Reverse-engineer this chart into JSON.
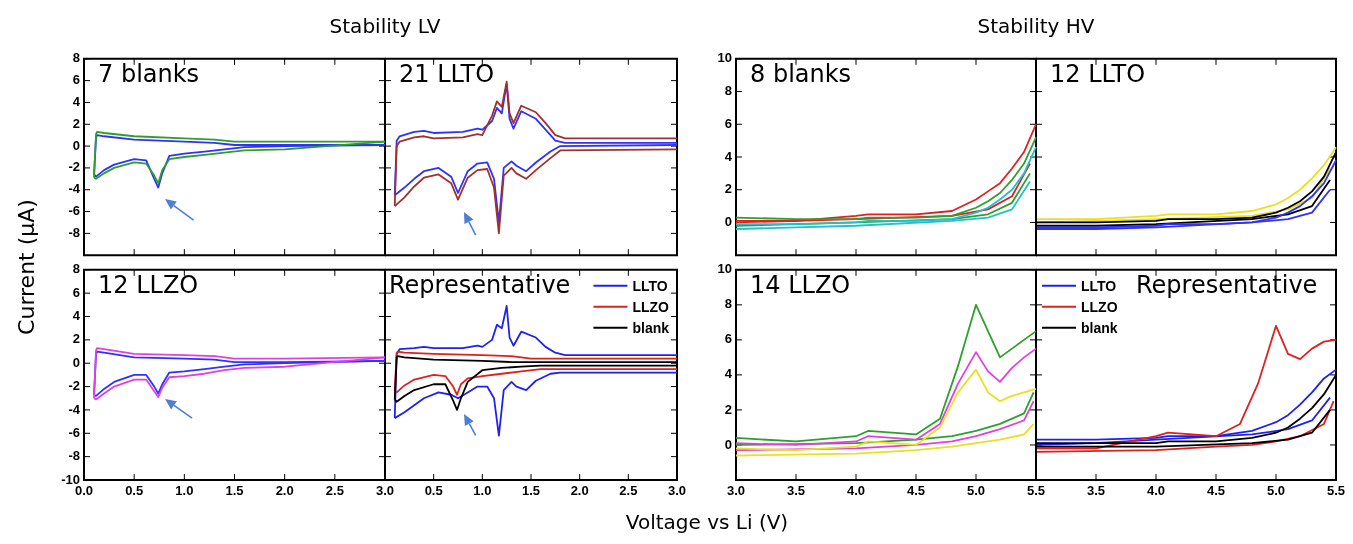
{
  "chart_data": [
    {
      "type": "line",
      "title": "Stability LV",
      "ylabel": "Current (μA)",
      "annotations": [
        "7 blanks"
      ],
      "marker": "none",
      "tick_labels": "y",
      "grid": false,
      "xlim": [
        0,
        3
      ],
      "ylim": [
        -10,
        8
      ],
      "xticks": [
        {
          "value": 0.5,
          "label": null
        },
        {
          "value": 1,
          "label": null
        },
        {
          "value": 1.5,
          "label": null
        },
        {
          "value": 2,
          "label": null
        },
        {
          "value": 2.5,
          "label": null
        }
      ],
      "yticks": [
        -8,
        -6,
        -4,
        -2,
        0,
        2,
        4,
        6,
        8
      ],
      "series": [
        {
          "color": "#3030ff",
          "x": [
            0.1,
            0.12,
            0.2,
            0.3,
            0.5,
            0.62,
            0.7,
            0.74,
            0.78,
            0.85,
            1.0,
            1.2,
            1.4,
            1.6,
            2.0,
            3.0
          ],
          "values": [
            -2.6,
            -2.8,
            -2.2,
            -1.7,
            -1.2,
            -1.3,
            -3.0,
            -3.8,
            -2.5,
            -0.9,
            -0.7,
            -0.5,
            -0.3,
            -0.1,
            0,
            0.1
          ]
        },
        {
          "color": "#3030ff",
          "x": [
            0.1,
            0.12,
            0.13,
            0.2,
            0.5,
            1.0,
            1.3,
            1.5,
            2.0,
            3.0
          ],
          "values": [
            -2.6,
            0.8,
            1.0,
            0.9,
            0.6,
            0.4,
            0.3,
            0.1,
            0.1,
            0.1
          ]
        },
        {
          "color": "#2ca02c",
          "x": [
            0.1,
            0.12,
            0.2,
            0.3,
            0.5,
            0.62,
            0.7,
            0.74,
            0.78,
            0.85,
            1.0,
            1.2,
            1.4,
            1.6,
            2.0,
            3.0
          ],
          "values": [
            -2.9,
            -3.0,
            -2.5,
            -2.0,
            -1.5,
            -1.6,
            -2.7,
            -3.4,
            -2.2,
            -1.2,
            -1.0,
            -0.8,
            -0.6,
            -0.4,
            -0.3,
            0.4
          ]
        },
        {
          "color": "#2ca02c",
          "x": [
            0.1,
            0.12,
            0.13,
            0.2,
            0.5,
            1.0,
            1.3,
            1.5,
            2.0,
            3.0
          ],
          "values": [
            -2.9,
            1.1,
            1.3,
            1.2,
            0.9,
            0.7,
            0.6,
            0.4,
            0.4,
            0.4
          ]
        }
      ]
    },
    {
      "type": "line",
      "annotations": [
        "21 LLTO"
      ],
      "marker": "none",
      "tick_labels": false,
      "grid": false,
      "xlim": [
        0,
        3
      ],
      "ylim": [
        -10,
        8
      ],
      "xticks": [
        {
          "value": 0.5,
          "label": null
        },
        {
          "value": 1,
          "label": null
        },
        {
          "value": 1.5,
          "label": null
        },
        {
          "value": 2,
          "label": null
        },
        {
          "value": 2.5,
          "label": null
        }
      ],
      "yticks": [
        {
          "value": -8,
          "label": null
        },
        {
          "value": -6,
          "label": null
        },
        {
          "value": -4,
          "label": null
        },
        {
          "value": -2,
          "label": null
        },
        {
          "value": 0,
          "label": null
        },
        {
          "value": 2,
          "label": null
        },
        {
          "value": 4,
          "label": null
        },
        {
          "value": 6,
          "label": null
        }
      ],
      "series": [
        {
          "color": "#3030ff",
          "x": [
            0.1,
            0.2,
            0.3,
            0.4,
            0.55,
            0.68,
            0.75,
            0.85,
            0.95,
            1.05,
            1.12,
            1.17,
            1.22,
            1.3,
            1.35,
            1.45,
            1.55,
            1.7,
            1.8,
            3.0
          ],
          "values": [
            -4.5,
            -3.8,
            -3.0,
            -2.3,
            -2.0,
            -2.8,
            -4.3,
            -2.3,
            -1.6,
            -1.5,
            -3.0,
            -7.0,
            -2.0,
            -1.4,
            -1.8,
            -2.3,
            -1.5,
            -0.5,
            0,
            0.1
          ]
        },
        {
          "color": "#3030ff",
          "x": [
            0.1,
            0.12,
            0.15,
            0.3,
            0.4,
            0.5,
            0.8,
            0.95,
            1.0,
            1.1,
            1.15,
            1.2,
            1.25,
            1.28,
            1.32,
            1.4,
            1.55,
            1.65,
            1.75,
            1.85,
            3.0
          ],
          "values": [
            -4.5,
            0.5,
            0.9,
            1.3,
            1.4,
            1.2,
            1.3,
            1.6,
            1.5,
            2.3,
            3.5,
            3.0,
            5.7,
            2.5,
            1.6,
            3.2,
            2.5,
            1.5,
            0.5,
            0.3,
            0.3
          ]
        },
        {
          "color": "#a0322d",
          "x": [
            0.1,
            0.2,
            0.3,
            0.4,
            0.55,
            0.68,
            0.75,
            0.85,
            0.95,
            1.05,
            1.12,
            1.17,
            1.22,
            1.3,
            1.35,
            1.45,
            1.55,
            1.7,
            1.8,
            3.0
          ],
          "values": [
            -5.5,
            -4.7,
            -3.7,
            -2.9,
            -2.6,
            -3.4,
            -4.9,
            -2.9,
            -2.2,
            -2.1,
            -3.8,
            -8.0,
            -2.7,
            -2.0,
            -2.5,
            -3.0,
            -2.2,
            -1.1,
            -0.4,
            -0.3
          ]
        },
        {
          "color": "#a0322d",
          "x": [
            0.1,
            0.12,
            0.15,
            0.3,
            0.4,
            0.5,
            0.8,
            0.95,
            1.0,
            1.1,
            1.15,
            1.2,
            1.25,
            1.28,
            1.32,
            1.4,
            1.55,
            1.65,
            1.75,
            1.85,
            3.0
          ],
          "values": [
            -5.5,
            0.0,
            0.4,
            0.8,
            0.9,
            0.7,
            0.8,
            1.1,
            1.0,
            2.8,
            4.1,
            3.6,
            5.9,
            3.0,
            2.1,
            3.7,
            3.1,
            2.1,
            1.0,
            0.7,
            0.7
          ]
        }
      ]
    },
    {
      "type": "line",
      "annotations": [
        "12 LLZO"
      ],
      "marker": "none",
      "grid": false,
      "xlim": [
        0,
        3
      ],
      "ylim": [
        -10,
        8
      ],
      "xticks": [
        {
          "value": 0,
          "label": "0.0"
        },
        {
          "value": 0.5,
          "label": "0.5"
        },
        {
          "value": 1,
          "label": "1.0"
        },
        {
          "value": 1.5,
          "label": "1.5"
        },
        {
          "value": 2,
          "label": "2.0"
        },
        {
          "value": 2.5,
          "label": "2.5"
        },
        {
          "value": 3,
          "label": "3.0"
        }
      ],
      "yticks": [
        -10,
        -8,
        -6,
        -4,
        -2,
        0,
        2,
        4,
        6,
        8
      ],
      "series": [
        {
          "color": "#3030ff",
          "x": [
            0.1,
            0.12,
            0.2,
            0.3,
            0.5,
            0.62,
            0.7,
            0.74,
            0.78,
            0.85,
            1.0,
            1.2,
            1.4,
            1.6,
            2.0,
            3.0
          ],
          "values": [
            -2.7,
            -2.8,
            -2.2,
            -1.6,
            -1.0,
            -1.0,
            -2.0,
            -2.6,
            -1.8,
            -0.8,
            -0.7,
            -0.5,
            -0.3,
            -0.1,
            0,
            0.2
          ]
        },
        {
          "color": "#3030ff",
          "x": [
            0.1,
            0.12,
            0.13,
            0.2,
            0.5,
            1.0,
            1.3,
            1.5,
            2.0,
            3.0
          ],
          "values": [
            -2.7,
            0.8,
            1.0,
            0.9,
            0.5,
            0.4,
            0.3,
            0.1,
            0.1,
            0.2
          ]
        },
        {
          "color": "#e040e0",
          "x": [
            0.1,
            0.12,
            0.2,
            0.3,
            0.5,
            0.62,
            0.7,
            0.74,
            0.78,
            0.85,
            1.0,
            1.2,
            1.4,
            1.6,
            2.0,
            3.0
          ],
          "values": [
            -3.0,
            -3.1,
            -2.6,
            -2.0,
            -1.4,
            -1.4,
            -2.4,
            -2.9,
            -2.1,
            -1.2,
            -1.1,
            -0.9,
            -0.6,
            -0.4,
            -0.3,
            0.5
          ]
        },
        {
          "color": "#e040e0",
          "x": [
            0.1,
            0.12,
            0.13,
            0.2,
            0.5,
            1.0,
            1.3,
            1.5,
            2.0,
            3.0
          ],
          "values": [
            -3.0,
            1.1,
            1.3,
            1.2,
            0.8,
            0.7,
            0.6,
            0.4,
            0.4,
            0.5
          ]
        }
      ]
    },
    {
      "type": "line",
      "annotations": [
        "Representative"
      ],
      "xlabel": "Voltage vs Li (V)",
      "marker": "none",
      "tick_labels": "x",
      "grid": false,
      "legend": "top right",
      "xlim": [
        0,
        3
      ],
      "ylim": [
        -10,
        8
      ],
      "xticks": [
        {
          "value": 0.5,
          "label": "0.5"
        },
        {
          "value": 1,
          "label": "1.0"
        },
        {
          "value": 1.5,
          "label": "1.5"
        },
        {
          "value": 2,
          "label": "2.0"
        },
        {
          "value": 2.5,
          "label": "2.5"
        },
        {
          "value": 3,
          "label": "3.0"
        }
      ],
      "yticks": [
        {
          "value": -8,
          "label": null
        },
        {
          "value": -6,
          "label": null
        },
        {
          "value": -4,
          "label": null
        },
        {
          "value": -2,
          "label": null
        },
        {
          "value": 0,
          "label": null
        },
        {
          "value": 2,
          "label": null
        },
        {
          "value": 4,
          "label": null
        },
        {
          "value": 6,
          "label": null
        }
      ],
      "series": [
        {
          "name": "LLTO",
          "color": "#2020f0",
          "x": [
            0.1,
            0.2,
            0.3,
            0.4,
            0.55,
            0.68,
            0.75,
            0.85,
            0.95,
            1.05,
            1.12,
            1.17,
            1.22,
            1.3,
            1.35,
            1.45,
            1.55,
            1.7,
            1.8,
            3.0
          ],
          "values": [
            -4.7,
            -4.2,
            -3.6,
            -3.0,
            -2.5,
            -2.7,
            -3.0,
            -2.5,
            -2.0,
            -2.0,
            -3.0,
            -6.2,
            -2.3,
            -1.6,
            -2.0,
            -2.3,
            -1.5,
            -0.9,
            -0.8,
            -0.8
          ]
        },
        {
          "color": "#2020f0",
          "x": [
            0.1,
            0.12,
            0.15,
            0.3,
            0.4,
            0.5,
            0.8,
            0.95,
            1.0,
            1.1,
            1.15,
            1.2,
            1.25,
            1.28,
            1.32,
            1.4,
            1.55,
            1.65,
            1.75,
            1.85,
            3.0
          ],
          "values": [
            -4.7,
            0.8,
            1.2,
            1.3,
            1.4,
            1.3,
            1.3,
            1.5,
            1.4,
            2.0,
            3.3,
            3.0,
            4.9,
            2.2,
            1.5,
            2.7,
            2.2,
            1.4,
            0.9,
            0.7,
            0.7
          ]
        },
        {
          "name": "LLZO",
          "color": "#e02020",
          "x": [
            0.1,
            0.12,
            0.2,
            0.3,
            0.5,
            0.62,
            0.7,
            0.74,
            0.78,
            0.85,
            1.0,
            1.2,
            1.4,
            1.6,
            2.0,
            3.0
          ],
          "values": [
            -2.4,
            -2.5,
            -1.9,
            -1.4,
            -1.0,
            -1.1,
            -2.0,
            -2.7,
            -1.8,
            -1.3,
            -1.1,
            -0.9,
            -0.7,
            -0.5,
            -0.5,
            -0.5
          ]
        },
        {
          "color": "#e02020",
          "x": [
            0.1,
            0.12,
            0.13,
            0.2,
            0.5,
            1.0,
            1.3,
            1.5,
            2.0,
            3.0
          ],
          "values": [
            -2.4,
            0.9,
            1.0,
            0.9,
            0.8,
            0.7,
            0.6,
            0.4,
            0.4,
            0.4
          ]
        },
        {
          "name": "blank",
          "color": "#000000",
          "x": [
            0.1,
            0.12,
            0.2,
            0.3,
            0.5,
            0.62,
            0.7,
            0.74,
            0.78,
            0.85,
            1.0,
            1.2,
            1.4,
            1.6,
            2.0,
            3.0
          ],
          "values": [
            -3.1,
            -3.3,
            -2.8,
            -2.3,
            -1.8,
            -1.8,
            -3.2,
            -4.0,
            -3.0,
            -1.6,
            -0.6,
            -0.4,
            -0.3,
            -0.2,
            -0.2,
            -0.2
          ]
        },
        {
          "color": "#000000",
          "x": [
            0.1,
            0.12,
            0.13,
            0.2,
            0.5,
            1.0,
            1.3,
            1.5,
            2.0,
            3.0
          ],
          "values": [
            -3.1,
            0.5,
            0.6,
            0.5,
            0.3,
            0.2,
            0.1,
            0.1,
            0.1,
            0.1
          ]
        }
      ]
    },
    {
      "type": "line",
      "title": "Stability HV",
      "annotations": [
        "8 blanks"
      ],
      "marker": "none",
      "tick_labels": "y",
      "grid": false,
      "xlim": [
        3,
        5.5
      ],
      "ylim": [
        -2,
        10
      ],
      "xticks": [
        {
          "value": 3.5,
          "label": null
        },
        {
          "value": 4,
          "label": null
        },
        {
          "value": 4.5,
          "label": null
        },
        {
          "value": 5,
          "label": null
        }
      ],
      "yticks": [
        0,
        2,
        4,
        6,
        8,
        10
      ],
      "series": [
        {
          "color": "#e02020",
          "x": [
            3.0,
            3.5,
            4.0,
            4.1,
            4.5,
            4.8,
            5.0,
            5.1,
            5.2,
            5.3,
            5.4,
            5.5
          ],
          "values": [
            0.1,
            0.1,
            0.4,
            0.5,
            0.5,
            0.7,
            1.4,
            1.9,
            2.4,
            3.3,
            4.3,
            6.0
          ]
        },
        {
          "color": "#e02020",
          "x": [
            3.0,
            3.5,
            4.0,
            4.8,
            5.1,
            5.3,
            5.45
          ],
          "values": [
            0.0,
            0.1,
            0.2,
            0.4,
            0.8,
            1.6,
            3.6
          ]
        },
        {
          "color": "#2ca02c",
          "x": [
            3.0,
            3.5,
            4.0,
            4.1,
            4.5,
            4.8,
            5.0,
            5.1,
            5.2,
            5.3,
            5.4,
            5.5
          ],
          "values": [
            0.3,
            0.2,
            0.2,
            0.3,
            0.3,
            0.4,
            0.9,
            1.3,
            1.8,
            2.6,
            3.6,
            5.2
          ]
        },
        {
          "color": "#2ca02c",
          "x": [
            3.0,
            3.5,
            4.0,
            4.8,
            5.1,
            5.3,
            5.45
          ],
          "values": [
            -0.2,
            -0.1,
            0.0,
            0.2,
            0.5,
            1.2,
            3.0
          ]
        },
        {
          "color": "#20c0d0",
          "x": [
            3.0,
            3.5,
            4.0,
            4.1,
            4.5,
            4.8,
            5.0,
            5.1,
            5.2,
            5.3,
            5.4,
            5.5
          ],
          "values": [
            -0.1,
            -0.1,
            0.0,
            0.1,
            0.1,
            0.2,
            0.6,
            0.9,
            1.4,
            2.0,
            3.0,
            4.6
          ]
        },
        {
          "color": "#20c0d0",
          "x": [
            3.0,
            3.5,
            4.0,
            4.8,
            5.1,
            5.3,
            5.45
          ],
          "values": [
            -0.4,
            -0.3,
            -0.2,
            0.1,
            0.3,
            0.8,
            2.5
          ]
        }
      ]
    },
    {
      "type": "line",
      "annotations": [
        "12 LLTO"
      ],
      "marker": "none",
      "tick_labels": false,
      "grid": false,
      "xlim": [
        3,
        5.5
      ],
      "ylim": [
        -2,
        10
      ],
      "xticks": [
        {
          "value": 3.5,
          "label": null
        },
        {
          "value": 4,
          "label": null
        },
        {
          "value": 4.5,
          "label": null
        },
        {
          "value": 5,
          "label": null
        }
      ],
      "yticks": [
        {
          "value": 0,
          "label": null
        },
        {
          "value": 2,
          "label": null
        },
        {
          "value": 4,
          "label": null
        },
        {
          "value": 6,
          "label": null
        },
        {
          "value": 8,
          "label": null
        }
      ],
      "series": [
        {
          "color": "#e8e020",
          "x": [
            3.0,
            3.5,
            4.0,
            4.1,
            4.5,
            4.8,
            5.0,
            5.1,
            5.2,
            5.3,
            5.4,
            5.5
          ],
          "values": [
            0.2,
            0.2,
            0.4,
            0.5,
            0.5,
            0.7,
            1.1,
            1.5,
            2.0,
            2.7,
            3.5,
            4.6
          ]
        },
        {
          "color": "#e8e020",
          "x": [
            3.0,
            3.5,
            4.0,
            4.8,
            5.1,
            5.3,
            5.45
          ],
          "values": [
            0.0,
            0.1,
            0.2,
            0.4,
            0.8,
            1.5,
            3.3
          ]
        },
        {
          "color": "#000000",
          "x": [
            3.0,
            3.5,
            4.0,
            4.1,
            4.5,
            4.8,
            5.0,
            5.1,
            5.2,
            5.3,
            5.4,
            5.5
          ],
          "values": [
            0.0,
            0.0,
            0.1,
            0.2,
            0.2,
            0.3,
            0.6,
            0.9,
            1.3,
            1.9,
            2.8,
            4.3
          ]
        },
        {
          "color": "#000000",
          "x": [
            3.0,
            3.5,
            4.0,
            4.8,
            5.1,
            5.3,
            5.45
          ],
          "values": [
            -0.2,
            -0.2,
            -0.1,
            0.2,
            0.5,
            1.0,
            2.6
          ]
        },
        {
          "color": "#3030ff",
          "x": [
            3.0,
            3.5,
            4.0,
            4.1,
            4.5,
            4.8,
            5.0,
            5.1,
            5.2,
            5.3,
            5.4,
            5.5
          ],
          "values": [
            -0.3,
            -0.3,
            -0.2,
            -0.1,
            -0.1,
            0.0,
            0.3,
            0.6,
            1.0,
            1.6,
            2.4,
            3.8
          ]
        },
        {
          "color": "#3030ff",
          "x": [
            3.0,
            3.5,
            4.0,
            4.8,
            5.1,
            5.3,
            5.45
          ],
          "values": [
            -0.4,
            -0.4,
            -0.3,
            0.0,
            0.2,
            0.6,
            2.0
          ]
        }
      ]
    },
    {
      "type": "line",
      "annotations": [
        "14 LLZO"
      ],
      "marker": "none",
      "grid": false,
      "xlim": [
        3,
        5.5
      ],
      "ylim": [
        -2,
        10
      ],
      "xticks": [
        {
          "value": 3,
          "label": "3.0"
        },
        {
          "value": 3.5,
          "label": "3.5"
        },
        {
          "value": 4,
          "label": "4.0"
        },
        {
          "value": 4.5,
          "label": "4.5"
        },
        {
          "value": 5,
          "label": "5.0"
        },
        {
          "value": 5.5,
          "label": "5.5"
        }
      ],
      "yticks": [
        0,
        2,
        4,
        6,
        8,
        10
      ],
      "series": [
        {
          "color": "#2ca02c",
          "x": [
            3.0,
            3.5,
            4.0,
            4.1,
            4.5,
            4.7,
            4.85,
            5.0,
            5.1,
            5.2,
            5.3,
            5.4,
            5.5
          ],
          "values": [
            0.4,
            0.2,
            0.5,
            0.8,
            0.6,
            1.5,
            4.5,
            8.0,
            6.5,
            5.0,
            5.5,
            6.0,
            6.5
          ]
        },
        {
          "color": "#2ca02c",
          "x": [
            3.0,
            4.0,
            4.5,
            4.8,
            5.0,
            5.2,
            5.4,
            5.48
          ],
          "values": [
            0.0,
            0.1,
            0.3,
            0.5,
            0.8,
            1.2,
            1.8,
            3.0
          ]
        },
        {
          "color": "#e040e0",
          "x": [
            3.0,
            3.5,
            4.0,
            4.1,
            4.5,
            4.7,
            4.85,
            5.0,
            5.1,
            5.2,
            5.3,
            5.4,
            5.5
          ],
          "values": [
            0.1,
            0.0,
            0.2,
            0.5,
            0.3,
            1.2,
            3.5,
            5.3,
            4.2,
            3.6,
            4.4,
            5.0,
            5.5
          ]
        },
        {
          "color": "#e040e0",
          "x": [
            3.0,
            4.0,
            4.5,
            4.8,
            5.0,
            5.2,
            5.4,
            5.48
          ],
          "values": [
            -0.3,
            -0.2,
            0.0,
            0.2,
            0.5,
            0.9,
            1.4,
            2.5
          ]
        },
        {
          "color": "#e8e020",
          "x": [
            3.0,
            3.5,
            4.0,
            4.1,
            4.5,
            4.7,
            4.85,
            5.0,
            5.1,
            5.2,
            5.3,
            5.4,
            5.5
          ],
          "values": [
            -0.2,
            -0.3,
            -0.1,
            0.2,
            0.0,
            1.0,
            3.0,
            4.3,
            3.0,
            2.5,
            2.8,
            3.0,
            3.2
          ]
        },
        {
          "color": "#e8e020",
          "x": [
            3.0,
            4.0,
            4.5,
            4.8,
            5.0,
            5.2,
            5.4,
            5.48
          ],
          "values": [
            -0.6,
            -0.5,
            -0.3,
            -0.1,
            0.1,
            0.3,
            0.6,
            1.2
          ]
        }
      ]
    },
    {
      "type": "line",
      "annotations": [
        "Representative"
      ],
      "marker": "none",
      "tick_labels": "x",
      "grid": false,
      "legend": "top left",
      "xlim": [
        3,
        5.5
      ],
      "ylim": [
        -2,
        10
      ],
      "xticks": [
        {
          "value": 3.5,
          "label": "3.5"
        },
        {
          "value": 4,
          "label": "4.0"
        },
        {
          "value": 4.5,
          "label": "4.5"
        },
        {
          "value": 5,
          "label": "5.0"
        },
        {
          "value": 5.5,
          "label": "5.5"
        }
      ],
      "yticks": [
        {
          "value": 0,
          "label": null
        },
        {
          "value": 2,
          "label": null
        },
        {
          "value": 4,
          "label": null
        },
        {
          "value": 6,
          "label": null
        },
        {
          "value": 8,
          "label": null
        }
      ],
      "series": [
        {
          "name": "LLTO",
          "color": "#2020f0",
          "x": [
            3.0,
            3.5,
            4.0,
            4.1,
            4.5,
            4.8,
            5.0,
            5.1,
            5.2,
            5.3,
            5.4,
            5.5
          ],
          "values": [
            0.3,
            0.3,
            0.4,
            0.5,
            0.5,
            0.8,
            1.3,
            1.7,
            2.3,
            3.0,
            3.8,
            4.3
          ]
        },
        {
          "color": "#2020f0",
          "x": [
            3.0,
            3.5,
            4.0,
            4.8,
            5.1,
            5.3,
            5.45
          ],
          "values": [
            0.0,
            0.1,
            0.3,
            0.6,
            0.9,
            1.4,
            2.7
          ]
        },
        {
          "name": "LLZO",
          "color": "#e02020",
          "x": [
            3.0,
            3.5,
            4.0,
            4.1,
            4.5,
            4.7,
            4.85,
            5.0,
            5.1,
            5.2,
            5.3,
            5.4,
            5.5
          ],
          "values": [
            -0.2,
            -0.2,
            0.5,
            0.7,
            0.5,
            1.2,
            3.5,
            6.8,
            5.2,
            4.9,
            5.5,
            5.9,
            6.0
          ]
        },
        {
          "color": "#e02020",
          "x": [
            3.0,
            4.0,
            4.5,
            4.8,
            5.0,
            5.2,
            5.4,
            5.48
          ],
          "values": [
            -0.4,
            -0.3,
            -0.1,
            0.0,
            0.2,
            0.5,
            1.2,
            2.5
          ]
        },
        {
          "name": "blank",
          "color": "#000000",
          "x": [
            3.0,
            3.5,
            4.0,
            4.1,
            4.5,
            4.8,
            5.0,
            5.1,
            5.2,
            5.3,
            5.4,
            5.5
          ],
          "values": [
            0.1,
            0.1,
            0.1,
            0.2,
            0.2,
            0.4,
            0.7,
            1.0,
            1.5,
            2.1,
            2.9,
            4.0
          ]
        },
        {
          "color": "#000000",
          "x": [
            3.0,
            3.5,
            4.0,
            4.8,
            5.1,
            5.3,
            5.45
          ],
          "values": [
            -0.1,
            -0.1,
            -0.1,
            0.1,
            0.3,
            0.7,
            2.0
          ]
        }
      ]
    }
  ]
}
